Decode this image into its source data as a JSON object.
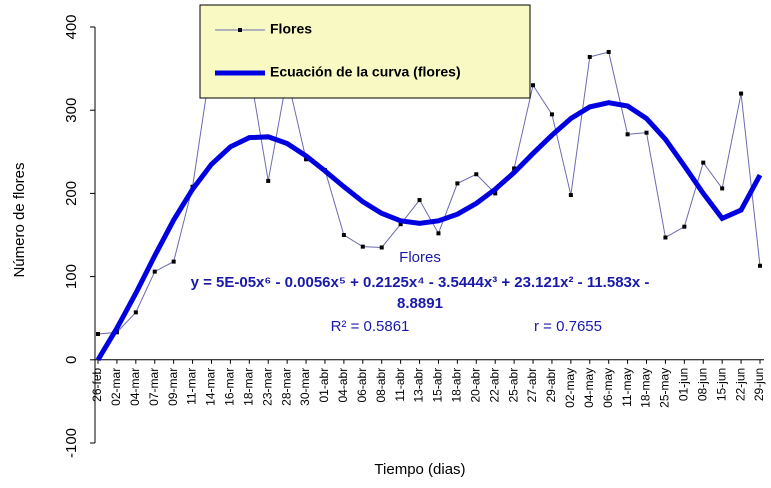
{
  "chart_data": {
    "type": "line",
    "categories": [
      "26-feb",
      "02-mar",
      "04-mar",
      "07-mar",
      "09-mar",
      "11-mar",
      "14-mar",
      "16-mar",
      "18-mar",
      "23-mar",
      "28-mar",
      "30-mar",
      "01-abr",
      "04-abr",
      "06-abr",
      "08-abr",
      "11-abr",
      "13-abr",
      "15-abr",
      "18-abr",
      "20-abr",
      "22-abr",
      "25-abr",
      "27-abr",
      "29-abr",
      "02-may",
      "04-may",
      "06-may",
      "11-may",
      "18-may",
      "25-may",
      "01-jun",
      "08-jun",
      "15-jun",
      "22-jun",
      "29-jun"
    ],
    "series": [
      {
        "name": "Flores",
        "color": "#6b6bb0",
        "values": [
          31,
          33,
          57,
          106,
          118,
          208,
          360,
          400,
          350,
          215,
          340,
          241,
          228,
          150,
          136,
          135,
          163,
          192,
          152,
          212,
          223,
          200,
          230,
          330,
          295,
          198,
          364,
          370,
          271,
          273,
          147,
          160,
          237,
          206,
          320,
          113
        ]
      },
      {
        "name": "Ecuación de la curva (flores)",
        "color": "#0000e0",
        "values": [
          0,
          38,
          80,
          125,
          168,
          205,
          235,
          256,
          267,
          268,
          260,
          245,
          227,
          208,
          190,
          176,
          167,
          164,
          167,
          175,
          188,
          205,
          225,
          248,
          270,
          290,
          304,
          309,
          305,
          290,
          265,
          233,
          200,
          170,
          180,
          222
        ]
      }
    ],
    "ylim": [
      -100,
      400
    ],
    "yticks": [
      -100,
      0,
      100,
      200,
      300,
      400
    ],
    "ylabel": "Número de flores",
    "xlabel": "Tiempo (dias)",
    "annotations": [
      "Flores",
      "y = 5E-05x⁶ - 0.0056x⁵ + 0.2125x⁴ - 3.5444x³ + 23.121x² - 11.583x -",
      "8.8891",
      "R² = 0.5861",
      "r = 0.7655"
    ]
  }
}
